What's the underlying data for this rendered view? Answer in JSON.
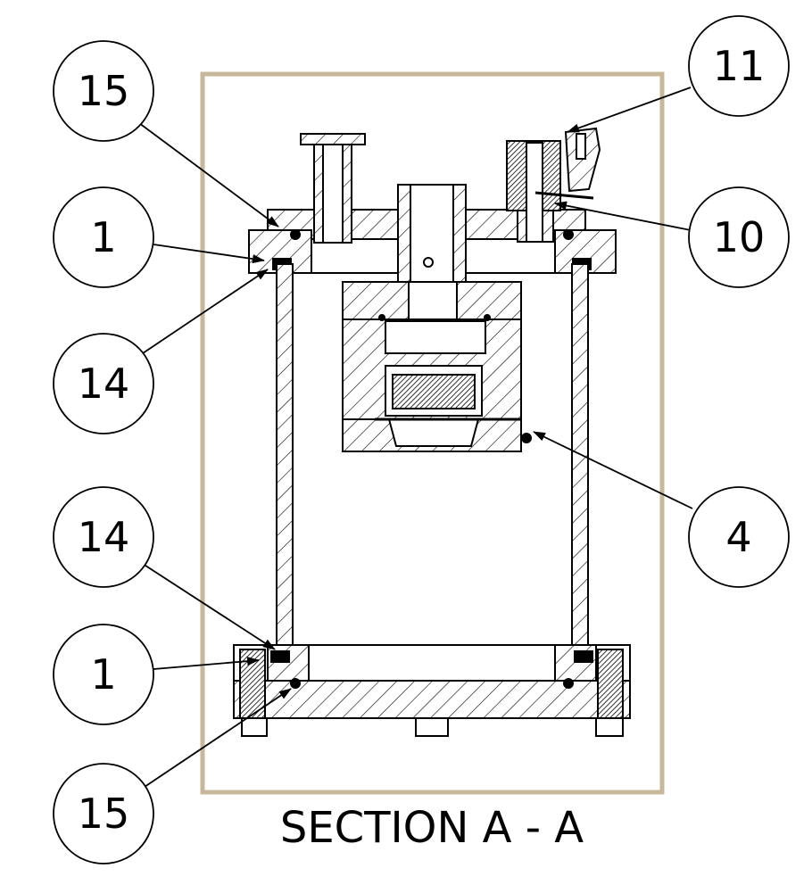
{
  "section_title": "SECTION A - A",
  "frame_color": "#c8b89a",
  "balloons": {
    "b15_top": "15",
    "b1_top": "1",
    "b14_top": "14",
    "b11": "11",
    "b10": "10",
    "b4": "4",
    "b14_bottom": "14",
    "b1_bottom": "1",
    "b15_bottom": "15"
  }
}
